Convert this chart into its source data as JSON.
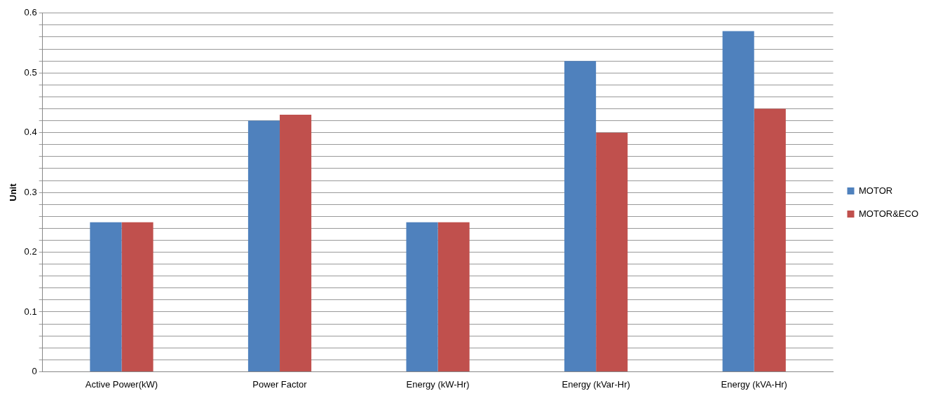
{
  "chart_data": {
    "type": "bar",
    "ylabel": "Unit",
    "categories": [
      "Active Power(kW)",
      "Power Factor",
      "Energy (kW-Hr)",
      "Energy (kVar-Hr)",
      "Energy (kVA-Hr)"
    ],
    "series": [
      {
        "name": "MOTOR",
        "color": "#4f81bd",
        "values": [
          0.25,
          0.42,
          0.25,
          0.52,
          0.57
        ]
      },
      {
        "name": "MOTOR&ECO",
        "color": "#c0504d",
        "values": [
          0.25,
          0.43,
          0.25,
          0.4,
          0.44
        ]
      }
    ],
    "ylim": [
      0,
      0.6
    ],
    "yticks": [
      0,
      {
        "value": 0.02,
        "label": null
      },
      {
        "value": 0.04,
        "label": null
      },
      {
        "value": 0.06,
        "label": null
      },
      {
        "value": 0.08,
        "label": null
      },
      0.1,
      {
        "value": 0.12,
        "label": null
      },
      {
        "value": 0.14,
        "label": null
      },
      {
        "value": 0.16,
        "label": null
      },
      {
        "value": 0.18,
        "label": null
      },
      0.2,
      {
        "value": 0.22,
        "label": null
      },
      {
        "value": 0.24,
        "label": null
      },
      {
        "value": 0.26,
        "label": null
      },
      {
        "value": 0.28,
        "label": null
      },
      0.3,
      {
        "value": 0.32,
        "label": null
      },
      {
        "value": 0.34,
        "label": null
      },
      {
        "value": 0.36,
        "label": null
      },
      {
        "value": 0.38,
        "label": null
      },
      0.4,
      {
        "value": 0.42,
        "label": null
      },
      {
        "value": 0.44,
        "label": null
      },
      {
        "value": 0.46,
        "label": null
      },
      {
        "value": 0.48,
        "label": null
      },
      0.5,
      {
        "value": 0.52,
        "label": null
      },
      {
        "value": 0.54,
        "label": null
      },
      {
        "value": 0.56,
        "label": null
      },
      {
        "value": 0.58,
        "label": null
      },
      0.6
    ],
    "grid": "y",
    "legend": "right"
  }
}
